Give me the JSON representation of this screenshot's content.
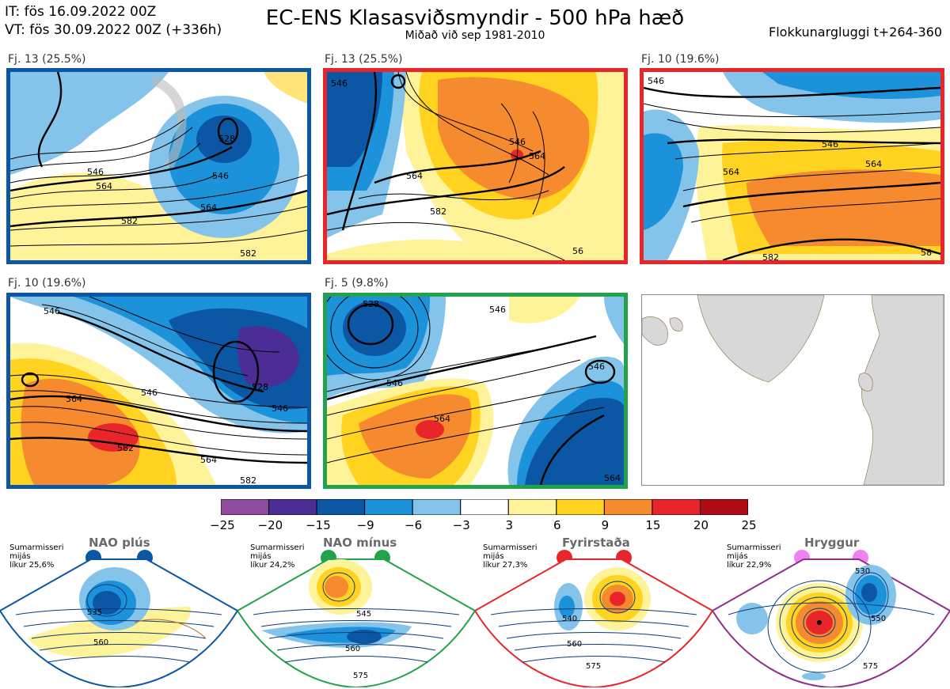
{
  "header": {
    "it_line": "IT: fös 16.09.2022 00Z",
    "vt_line": "VT: fös 30.09.2022 00Z  (+336h)",
    "title": "EC-ENS Klasasviðsmyndir - 500 hPa hæð",
    "subtitle": "Miðað við sep 1981-2010",
    "window": "Flokkunargluggi t+264-360"
  },
  "clusters": [
    {
      "label": "Fj. 13 (25.5%)",
      "border": "#0b57a4",
      "contours": [
        "546",
        "564",
        "582",
        "528",
        "546",
        "564",
        "582"
      ]
    },
    {
      "label": "Fj. 13 (25.5%)",
      "border": "#e8262a",
      "contours": [
        "546",
        "546",
        "564",
        "582",
        "564",
        "56"
      ]
    },
    {
      "label": "Fj. 10 (19.6%)",
      "border": "#e8262a",
      "corner": "CR",
      "contours": [
        "546",
        "546",
        "564",
        "564",
        "582",
        "58"
      ]
    },
    {
      "label": "Fj. 10 (19.6%)",
      "border": "#0b57a4",
      "contours": [
        "546",
        "564",
        "582",
        "564",
        "546",
        "528",
        "546",
        "582"
      ]
    },
    {
      "label": "Fj. 5 (9.8%)",
      "border": "#22a24a",
      "contours": [
        "528",
        "546",
        "546",
        "564",
        "546",
        "564"
      ]
    }
  ],
  "colorbar": {
    "ticks": [
      "−25",
      "−20",
      "−15",
      "−9",
      "−6",
      "−3",
      "3",
      "6",
      "9",
      "15",
      "20",
      "25"
    ],
    "colors": [
      "#8e4c9e",
      "#4b2d95",
      "#0b57a4",
      "#1b92d9",
      "#84c4ea",
      "#ffffff",
      "#fff399",
      "#ffd31f",
      "#f58a2e",
      "#e8262a",
      "#ad0a15"
    ]
  },
  "regimes": [
    {
      "name": "NAO plús",
      "note1": "Sumarmisseri",
      "note2": "mijás",
      "note3": "líkur 25,6%",
      "color": "#0b57a4",
      "labels": [
        "535",
        "560"
      ]
    },
    {
      "name": "NAO mínus",
      "note1": "Sumarmisseri",
      "note2": "mijás",
      "note3": "líkur 24,2%",
      "color": "#22a24a",
      "labels": [
        "545",
        "560",
        "575"
      ]
    },
    {
      "name": "Fyrirstaða",
      "note1": "Sumarmisseri",
      "note2": "mijás",
      "note3": "líkur 27,3%",
      "color": "#e8262a",
      "labels": [
        "540",
        "560",
        "575"
      ]
    },
    {
      "name": "Hryggur",
      "note1": "Sumarmisseri",
      "note2": "mijás",
      "note3": "líkur 22,9%",
      "color": "#8e2f8e",
      "labels": [
        "530",
        "550",
        "575"
      ]
    }
  ]
}
